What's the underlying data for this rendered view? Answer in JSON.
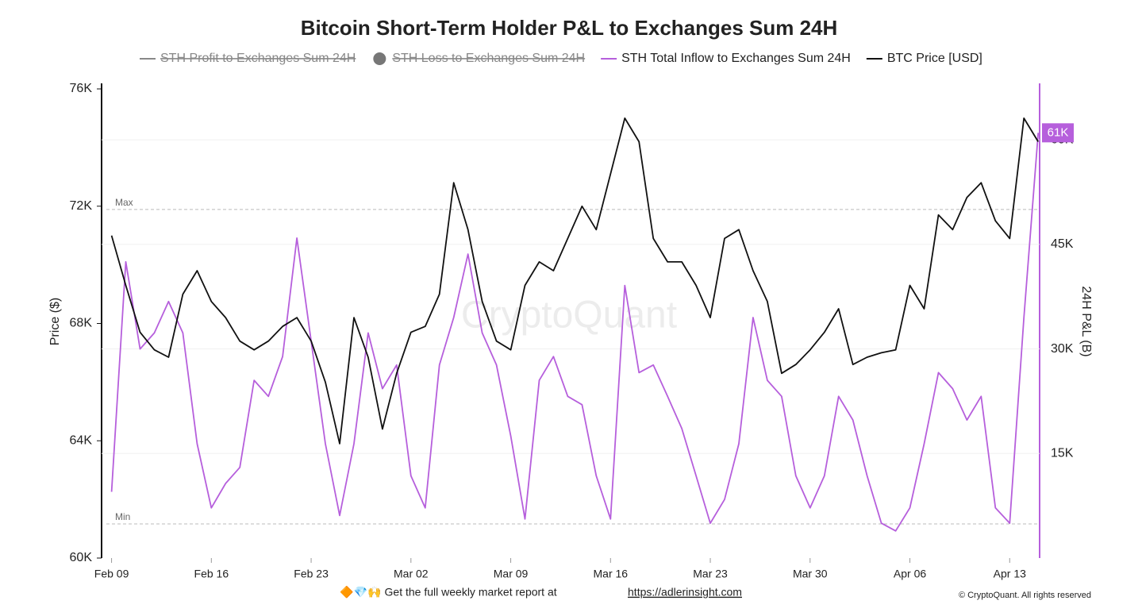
{
  "chart_data": {
    "type": "line",
    "title": "Bitcoin Short-Term Holder P&L to Exchanges Sum 24H",
    "legend_hidden": [
      "STH Profit to Exchanges Sum 24H",
      "STH Loss to Exchanges Sum 24H"
    ],
    "y_label": "Price ($)",
    "y2_label": "24H P&L (B)",
    "watermark": "CryptoQuant",
    "footer": {
      "text": "🔶💎🙌 Get the full weekly market report at",
      "link": "https://adlerinsight.com"
    },
    "copyright": "© CryptoQuant. All rights reserved",
    "x": [
      0,
      1,
      2,
      3,
      4,
      5,
      6,
      7,
      8,
      9,
      10,
      11,
      12,
      13,
      14,
      15,
      16,
      17,
      18,
      19,
      20,
      21,
      22,
      23,
      24,
      25,
      26,
      27,
      28,
      29,
      30,
      31,
      32,
      33,
      34,
      35,
      36,
      37,
      38,
      39,
      40,
      41,
      42,
      43,
      44,
      45,
      46,
      47,
      48,
      49,
      50,
      51,
      52,
      53,
      54,
      55,
      56,
      57,
      58,
      59,
      60,
      61,
      62,
      63,
      64,
      65
    ],
    "xlim": [
      -0.7,
      65.1
    ],
    "xticks": [
      {
        "value": 0,
        "label": "Feb 09"
      },
      {
        "value": 7,
        "label": "Feb 16"
      },
      {
        "value": 14,
        "label": "Feb 23"
      },
      {
        "value": 21,
        "label": "Mar 02"
      },
      {
        "value": 28,
        "label": "Mar 09"
      },
      {
        "value": 35,
        "label": "Mar 16"
      },
      {
        "value": 42,
        "label": "Mar 23"
      },
      {
        "value": 49,
        "label": "Mar 30"
      },
      {
        "value": 56,
        "label": "Apr 06"
      },
      {
        "value": 63,
        "label": "Apr 13"
      }
    ],
    "ylim": [
      60000,
      76000
    ],
    "yticks": [
      {
        "value": 60000,
        "label": "60K"
      },
      {
        "value": 64000,
        "label": "64K"
      },
      {
        "value": 68000,
        "label": "68K"
      },
      {
        "value": 72000,
        "label": "72K"
      },
      {
        "value": 76000,
        "label": "76K"
      }
    ],
    "y2lim": [
      0,
      67300
    ],
    "y2ticks": [
      {
        "value": 15000,
        "label": "15K"
      },
      {
        "value": 30000,
        "label": "30K"
      },
      {
        "value": 45000,
        "label": "45K"
      },
      {
        "value": 60000,
        "label": "60K"
      }
    ],
    "grid": true,
    "reference_lines": [
      {
        "label": "Max",
        "value": 50000,
        "axis": "y2"
      },
      {
        "label": "Min",
        "value": 4900,
        "axis": "y2"
      }
    ],
    "series": [
      {
        "name": "STH Total Inflow to  Exchanges Sum 24H",
        "color": "#b65fdc",
        "axis": "y2",
        "end_label": "61K",
        "values": [
          9500,
          42500,
          30000,
          32300,
          36800,
          32300,
          16400,
          7200,
          10700,
          13000,
          25500,
          23200,
          28900,
          45900,
          31100,
          16400,
          6100,
          16400,
          32300,
          24300,
          27700,
          11800,
          7200,
          27700,
          34500,
          43600,
          32300,
          27700,
          17500,
          5600,
          25500,
          28900,
          23200,
          22000,
          11800,
          5600,
          39100,
          26600,
          27700,
          23200,
          18600,
          11800,
          5000,
          8400,
          16400,
          34500,
          25500,
          23200,
          11800,
          7200,
          11800,
          23200,
          19800,
          11800,
          5000,
          3900,
          7200,
          16400,
          26600,
          24300,
          19800,
          23200,
          7200,
          5000,
          34500,
          61000
        ]
      },
      {
        "name": "BTC Price [USD]",
        "color": "#111111",
        "axis": "y",
        "values": [
          71000,
          69300,
          67700,
          67100,
          66850,
          69000,
          69800,
          68750,
          68200,
          67400,
          67100,
          67400,
          67900,
          68200,
          67400,
          66000,
          63900,
          68200,
          66850,
          64400,
          66300,
          67700,
          67900,
          69000,
          72800,
          71200,
          68750,
          67400,
          67100,
          69300,
          70100,
          69800,
          70900,
          72000,
          71200,
          73100,
          75000,
          74200,
          70900,
          70100,
          70100,
          69300,
          68200,
          70900,
          71200,
          69800,
          68750,
          66300,
          66600,
          67100,
          67700,
          68500,
          66600,
          66850,
          67000,
          67100,
          69300,
          68500,
          71700,
          71200,
          72300,
          72800,
          71500,
          70900,
          75000,
          74200
        ]
      }
    ]
  }
}
